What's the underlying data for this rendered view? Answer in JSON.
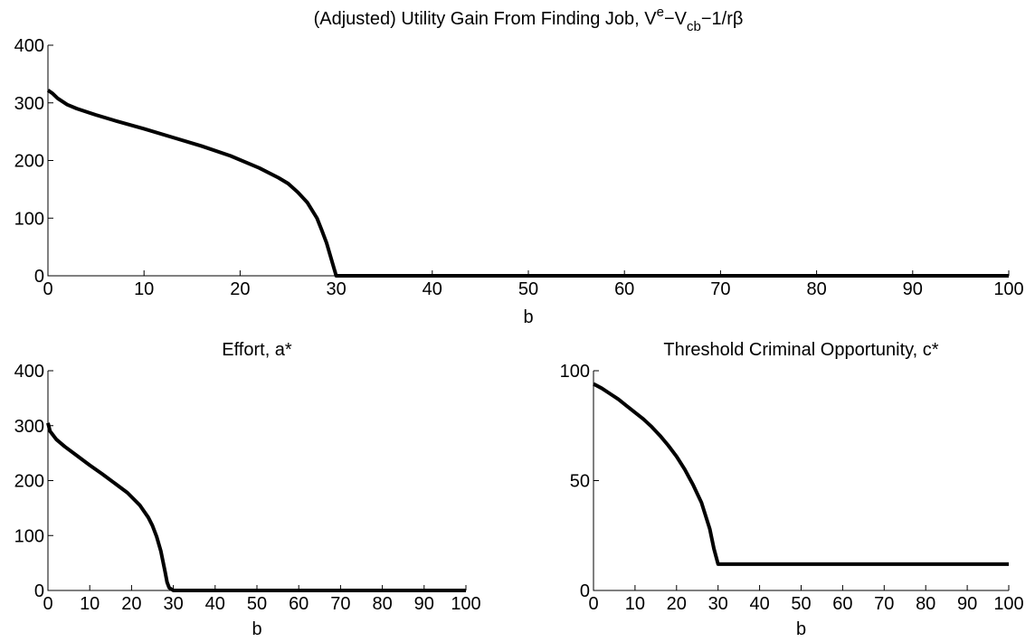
{
  "chart_data": [
    {
      "type": "line",
      "title": {
        "prefix": "(Adjusted) Utility Gain From Finding Job, V",
        "sup": "e",
        "mid": "−V",
        "sub": "cb",
        "suffix": "−1/rβ"
      },
      "xlabel": "b",
      "ylabel": "",
      "xlim": [
        0,
        100
      ],
      "ylim": [
        0,
        400
      ],
      "xticks": [
        0,
        10,
        20,
        30,
        40,
        50,
        60,
        70,
        80,
        90,
        100
      ],
      "yticks": [
        0,
        100,
        200,
        300,
        400
      ],
      "grid": false,
      "series": [
        {
          "x": [
            0,
            0.5,
            1,
            2,
            3,
            5,
            7,
            10,
            13,
            16,
            19,
            22,
            24,
            25,
            26,
            27,
            28,
            28.5,
            29,
            30,
            35,
            40,
            50,
            60,
            70,
            80,
            90,
            100
          ],
          "y": [
            322,
            316,
            308,
            297,
            290,
            279,
            269,
            255,
            240,
            225,
            208,
            187,
            170,
            160,
            145,
            127,
            100,
            79,
            57,
            0,
            0,
            0,
            0,
            0,
            0,
            0,
            0,
            0
          ]
        }
      ]
    },
    {
      "type": "line",
      "title": "Effort, a*",
      "xlabel": "b",
      "ylabel": "",
      "xlim": [
        0,
        100
      ],
      "ylim": [
        0,
        400
      ],
      "xticks": [
        0,
        10,
        20,
        30,
        40,
        50,
        60,
        70,
        80,
        90,
        100
      ],
      "yticks": [
        0,
        100,
        200,
        300,
        400
      ],
      "grid": false,
      "series": [
        {
          "x": [
            0,
            0.5,
            1,
            2,
            4,
            7,
            10,
            13,
            16,
            19,
            22,
            24,
            25,
            26,
            27,
            28,
            28.5,
            29,
            30,
            35,
            40,
            50,
            60,
            70,
            80,
            90,
            100
          ],
          "y": [
            305,
            290,
            285,
            275,
            262,
            245,
            228,
            212,
            195,
            178,
            155,
            133,
            118,
            98,
            72,
            35,
            15,
            5,
            0,
            0,
            0,
            0,
            0,
            0,
            0,
            0,
            0
          ]
        }
      ]
    },
    {
      "type": "line",
      "title": "Threshold Criminal Opportunity, c*",
      "xlabel": "b",
      "ylabel": "",
      "xlim": [
        0,
        100
      ],
      "ylim": [
        0,
        100
      ],
      "xticks": [
        0,
        10,
        20,
        30,
        40,
        50,
        60,
        70,
        80,
        90,
        100
      ],
      "yticks": [
        0,
        50,
        100
      ],
      "grid": false,
      "series": [
        {
          "x": [
            0,
            2,
            4,
            6,
            8,
            10,
            12,
            14,
            16,
            18,
            20,
            22,
            24,
            26,
            28,
            29,
            30,
            35,
            40,
            50,
            60,
            70,
            80,
            90,
            100
          ],
          "y": [
            94,
            92,
            89.5,
            87,
            84,
            81,
            78,
            74.5,
            70.5,
            66,
            61,
            55,
            48,
            40,
            28,
            19,
            12,
            12,
            12,
            12,
            12,
            12,
            12,
            12,
            12
          ]
        }
      ]
    }
  ]
}
